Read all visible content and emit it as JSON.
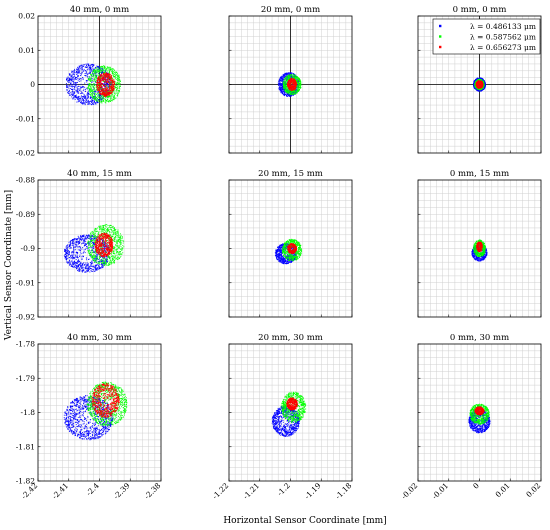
{
  "figure": {
    "xlabel": "Horizontal Sensor Coordinate [mm]",
    "ylabel": "Vertical Sensor Coordinate [mm]"
  },
  "legend": [
    {
      "label": "λ = 0.486133 μm",
      "color": "#0000ff"
    },
    {
      "label": "λ = 0.587562 μm",
      "color": "#00ff00"
    },
    {
      "label": "λ = 0.656273 μm",
      "color": "#ff0000"
    }
  ],
  "colors": {
    "blue": "#0000ff",
    "green": "#00ff00",
    "red": "#ff0000",
    "grid": "#d0d0d0"
  },
  "columns": [
    {
      "xlim": [
        -2.42,
        -2.38
      ],
      "xticks": [
        -2.42,
        -2.41,
        -2.4,
        -2.39,
        -2.38
      ],
      "xticklabels": [
        "-2.42",
        "-2.41",
        "-2.4",
        "-2.39",
        "-2.38"
      ]
    },
    {
      "xlim": [
        -1.22,
        -1.18
      ],
      "xticks": [
        -1.22,
        -1.21,
        -1.2,
        -1.19,
        -1.18
      ],
      "xticklabels": [
        "-1.22",
        "-1.21",
        "-1.2",
        "-1.19",
        "-1.18"
      ]
    },
    {
      "xlim": [
        -0.02,
        0.02
      ],
      "xticks": [
        -0.02,
        -0.01,
        0,
        0.01,
        0.02
      ],
      "xticklabels": [
        "-0.02",
        "-0.01",
        "0",
        "0.01",
        "0.02"
      ]
    }
  ],
  "rows": [
    {
      "ylim": [
        -0.02,
        0.02
      ],
      "yticks": [
        0.02,
        0.01,
        0,
        -0.01,
        -0.02
      ],
      "yticklabels": [
        "0.02",
        "0.01",
        "0",
        "-0.01",
        "-0.02"
      ]
    },
    {
      "ylim": [
        -0.92,
        -0.88
      ],
      "yticks": [
        -0.88,
        -0.89,
        -0.9,
        -0.91,
        -0.92
      ],
      "yticklabels": [
        "-0.88",
        "-0.89",
        "-0.9",
        "-0.91",
        "-0.92"
      ]
    },
    {
      "ylim": [
        -1.82,
        -1.78
      ],
      "yticks": [
        -1.78,
        -1.79,
        -1.8,
        -1.81,
        -1.82
      ],
      "yticklabels": [
        "-1.78",
        "-1.79",
        "-1.8",
        "-1.81",
        "-1.82"
      ]
    }
  ],
  "chart_data": [
    {
      "type": "scatter",
      "title": "40 mm, 0 mm",
      "row": 0,
      "col": 0,
      "crosshair": [
        -2.4,
        0
      ],
      "series": [
        {
          "color": "#0000ff",
          "center": [
            -2.4035,
            0.0
          ],
          "radii": [
            0.0075,
            0.006
          ],
          "points": 900
        },
        {
          "color": "#00ff00",
          "center": [
            -2.3985,
            0.0
          ],
          "radii": [
            0.0055,
            0.0055
          ],
          "points": 700
        },
        {
          "color": "#ff0000",
          "center": [
            -2.398,
            0.0
          ],
          "radii": [
            0.003,
            0.0035
          ],
          "points": 500
        }
      ]
    },
    {
      "type": "scatter",
      "title": "20 mm, 0 mm",
      "row": 0,
      "col": 1,
      "crosshair": [
        -1.2,
        0
      ],
      "series": [
        {
          "color": "#0000ff",
          "center": [
            -1.2005,
            0.0
          ],
          "radii": [
            0.0035,
            0.0035
          ],
          "points": 700
        },
        {
          "color": "#00ff00",
          "center": [
            -1.1995,
            0.0
          ],
          "radii": [
            0.003,
            0.003
          ],
          "points": 500
        },
        {
          "color": "#ff0000",
          "center": [
            -1.1995,
            0.0
          ],
          "radii": [
            0.0015,
            0.0018
          ],
          "points": 350
        }
      ]
    },
    {
      "type": "scatter",
      "title": "0 mm, 0 mm",
      "row": 0,
      "col": 2,
      "crosshair": [
        0,
        0
      ],
      "series": [
        {
          "color": "#0000ff",
          "center": [
            0,
            0
          ],
          "radii": [
            0.002,
            0.002
          ],
          "points": 500
        },
        {
          "color": "#00ff00",
          "center": [
            0,
            0
          ],
          "radii": [
            0.0016,
            0.0016
          ],
          "points": 350
        },
        {
          "color": "#ff0000",
          "center": [
            0,
            0
          ],
          "radii": [
            0.0012,
            0.0012
          ],
          "points": 250
        }
      ]
    },
    {
      "type": "scatter",
      "title": "40 mm, 15 mm",
      "row": 1,
      "col": 0,
      "crosshair": null,
      "series": [
        {
          "color": "#0000ff",
          "center": [
            -2.404,
            -0.9015
          ],
          "radii": [
            0.0075,
            0.0055
          ],
          "points": 900
        },
        {
          "color": "#00ff00",
          "center": [
            -2.398,
            -0.899
          ],
          "radii": [
            0.006,
            0.006
          ],
          "points": 700
        },
        {
          "color": "#ff0000",
          "center": [
            -2.3985,
            -0.899
          ],
          "radii": [
            0.003,
            0.0035
          ],
          "points": 500
        }
      ]
    },
    {
      "type": "scatter",
      "title": "20 mm, 15 mm",
      "row": 1,
      "col": 1,
      "crosshair": null,
      "series": [
        {
          "color": "#0000ff",
          "center": [
            -1.2015,
            -0.9015
          ],
          "radii": [
            0.0035,
            0.003
          ],
          "points": 700
        },
        {
          "color": "#00ff00",
          "center": [
            -1.1995,
            -0.9005
          ],
          "radii": [
            0.0032,
            0.0032
          ],
          "points": 500
        },
        {
          "color": "#ff0000",
          "center": [
            -1.1995,
            -0.9
          ],
          "radii": [
            0.0015,
            0.0015
          ],
          "points": 300
        }
      ]
    },
    {
      "type": "scatter",
      "title": "0 mm, 15 mm",
      "row": 1,
      "col": 2,
      "crosshair": null,
      "series": [
        {
          "color": "#0000ff",
          "center": [
            0,
            -0.9012
          ],
          "radii": [
            0.0025,
            0.0025
          ],
          "points": 500
        },
        {
          "color": "#00ff00",
          "center": [
            0,
            -0.9
          ],
          "radii": [
            0.002,
            0.0025
          ],
          "points": 400
        },
        {
          "color": "#ff0000",
          "center": [
            0,
            -0.8995
          ],
          "radii": [
            0.001,
            0.0015
          ],
          "points": 200
        }
      ]
    },
    {
      "type": "scatter",
      "title": "40 mm, 30 mm",
      "row": 2,
      "col": 0,
      "crosshair": null,
      "series": [
        {
          "color": "#0000ff",
          "center": [
            -2.4035,
            -1.8015
          ],
          "radii": [
            0.008,
            0.0065
          ],
          "points": 1000
        },
        {
          "color": "#00ff00",
          "center": [
            -2.3975,
            -1.7975
          ],
          "radii": [
            0.0065,
            0.0065
          ],
          "points": 800
        },
        {
          "color": "#ff0000",
          "center": [
            -2.398,
            -1.7965
          ],
          "radii": [
            0.0045,
            0.005
          ],
          "points": 600
        }
      ]
    },
    {
      "type": "scatter",
      "title": "20 mm, 30 mm",
      "row": 2,
      "col": 1,
      "crosshair": null,
      "series": [
        {
          "color": "#0000ff",
          "center": [
            -1.2015,
            -1.8025
          ],
          "radii": [
            0.0045,
            0.0045
          ],
          "points": 800
        },
        {
          "color": "#00ff00",
          "center": [
            -1.199,
            -1.7985
          ],
          "radii": [
            0.004,
            0.0045
          ],
          "points": 600
        },
        {
          "color": "#ff0000",
          "center": [
            -1.1995,
            -1.7975
          ],
          "radii": [
            0.0018,
            0.0018
          ],
          "points": 350
        }
      ]
    },
    {
      "type": "scatter",
      "title": "0 mm, 30 mm",
      "row": 2,
      "col": 2,
      "crosshair": null,
      "series": [
        {
          "color": "#0000ff",
          "center": [
            0,
            -1.8025
          ],
          "radii": [
            0.0035,
            0.0035
          ],
          "points": 700
        },
        {
          "color": "#00ff00",
          "center": [
            0,
            -1.8005
          ],
          "radii": [
            0.0032,
            0.003
          ],
          "points": 500
        },
        {
          "color": "#ff0000",
          "center": [
            0,
            -1.7995
          ],
          "radii": [
            0.0015,
            0.0012
          ],
          "points": 300
        }
      ]
    }
  ]
}
